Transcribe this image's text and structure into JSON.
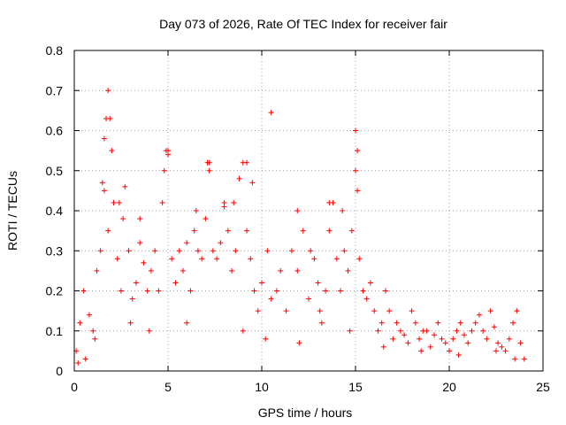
{
  "chart_data": {
    "type": "scatter",
    "title": "Day 073 of 2026, Rate Of TEC Index for receiver fair",
    "xlabel": "GPS time / hours",
    "ylabel": "ROTI / TECUs",
    "xlim": [
      0,
      25
    ],
    "ylim": [
      0,
      0.8
    ],
    "xticks": [
      "0",
      "5",
      "10",
      "15",
      "20",
      "25"
    ],
    "yticks": [
      "0",
      "0.1",
      "0.2",
      "0.3",
      "0.4",
      "0.5",
      "0.6",
      "0.7",
      "0.8"
    ],
    "grid": true,
    "marker": "+",
    "marker_color": "#ff0000",
    "series": [
      {
        "x": [
          0.1,
          0.3,
          0.5,
          0.8,
          1.0,
          1.2,
          1.4,
          1.6,
          1.8,
          1.9,
          2.0,
          2.1,
          2.3,
          2.5,
          2.7,
          2.9,
          3.1,
          3.3,
          3.5,
          3.7,
          3.9,
          4.1,
          4.3,
          4.5,
          4.7,
          4.9,
          5.0,
          5.2,
          5.4,
          5.6,
          5.8,
          6.0,
          6.2,
          6.4,
          6.6,
          6.8,
          7.0,
          7.2,
          7.4,
          7.6,
          7.8,
          8.0,
          8.2,
          8.4,
          8.6,
          8.8,
          9.0,
          9.2,
          9.4,
          9.6,
          9.8,
          10.0,
          10.3,
          10.5,
          10.8,
          11.0,
          11.3,
          11.6,
          11.9,
          12.2,
          12.5,
          12.8,
          13.0,
          13.2,
          13.4,
          13.6,
          13.8,
          14.0,
          14.2,
          14.4,
          14.6,
          14.8,
          15.0,
          15.1,
          15.2,
          15.4,
          15.6,
          15.8,
          16.0,
          16.2,
          16.4,
          16.6,
          16.8,
          17.0,
          17.2,
          17.4,
          17.6,
          17.8,
          18.0,
          18.2,
          18.4,
          18.6,
          18.8,
          19.0,
          19.2,
          19.4,
          19.6,
          19.8,
          20.0,
          20.2,
          20.4,
          20.6,
          20.8,
          21.0,
          21.2,
          21.4,
          21.6,
          21.8,
          22.0,
          22.2,
          22.4,
          22.6,
          22.8,
          23.0,
          23.2,
          23.4,
          23.6,
          23.8,
          24.0,
          1.6,
          1.7,
          1.8,
          1.5,
          2.4,
          2.6,
          4.8,
          5.0,
          7.1,
          7.2,
          8.5,
          9.2,
          9.5,
          10.5,
          13.6,
          15.0,
          15.1,
          11.9,
          3.5,
          6.5,
          8.0,
          12.6,
          14.3,
          0.2,
          0.6,
          1.1,
          3.0,
          4.0,
          6.0,
          9.0,
          10.2,
          12.0,
          13.1,
          14.7,
          16.5,
          18.5,
          20.5,
          22.5,
          23.5
        ],
        "y": [
          0.05,
          0.12,
          0.2,
          0.14,
          0.1,
          0.25,
          0.3,
          0.45,
          0.35,
          0.63,
          0.55,
          0.42,
          0.28,
          0.2,
          0.46,
          0.3,
          0.18,
          0.22,
          0.32,
          0.27,
          0.2,
          0.25,
          0.3,
          0.2,
          0.42,
          0.55,
          0.54,
          0.28,
          0.22,
          0.3,
          0.25,
          0.32,
          0.2,
          0.35,
          0.3,
          0.28,
          0.38,
          0.52,
          0.3,
          0.28,
          0.32,
          0.42,
          0.35,
          0.25,
          0.3,
          0.48,
          0.52,
          0.35,
          0.28,
          0.2,
          0.15,
          0.22,
          0.3,
          0.18,
          0.2,
          0.25,
          0.15,
          0.3,
          0.25,
          0.35,
          0.18,
          0.28,
          0.22,
          0.12,
          0.2,
          0.35,
          0.42,
          0.28,
          0.2,
          0.3,
          0.25,
          0.35,
          0.5,
          0.45,
          0.28,
          0.2,
          0.18,
          0.22,
          0.15,
          0.1,
          0.12,
          0.2,
          0.15,
          0.08,
          0.12,
          0.1,
          0.09,
          0.07,
          0.15,
          0.12,
          0.08,
          0.1,
          0.1,
          0.06,
          0.09,
          0.12,
          0.08,
          0.07,
          0.05,
          0.08,
          0.1,
          0.12,
          0.09,
          0.07,
          0.1,
          0.12,
          0.14,
          0.1,
          0.08,
          0.15,
          0.11,
          0.07,
          0.06,
          0.05,
          0.08,
          0.12,
          0.15,
          0.07,
          0.03,
          0.58,
          0.63,
          0.7,
          0.47,
          0.42,
          0.38,
          0.5,
          0.55,
          0.52,
          0.5,
          0.42,
          0.52,
          0.47,
          0.645,
          0.42,
          0.6,
          0.55,
          0.4,
          0.38,
          0.4,
          0.41,
          0.3,
          0.4,
          0.02,
          0.03,
          0.08,
          0.12,
          0.1,
          0.12,
          0.1,
          0.08,
          0.07,
          0.15,
          0.1,
          0.06,
          0.05,
          0.04,
          0.05,
          0.03
        ]
      }
    ]
  }
}
